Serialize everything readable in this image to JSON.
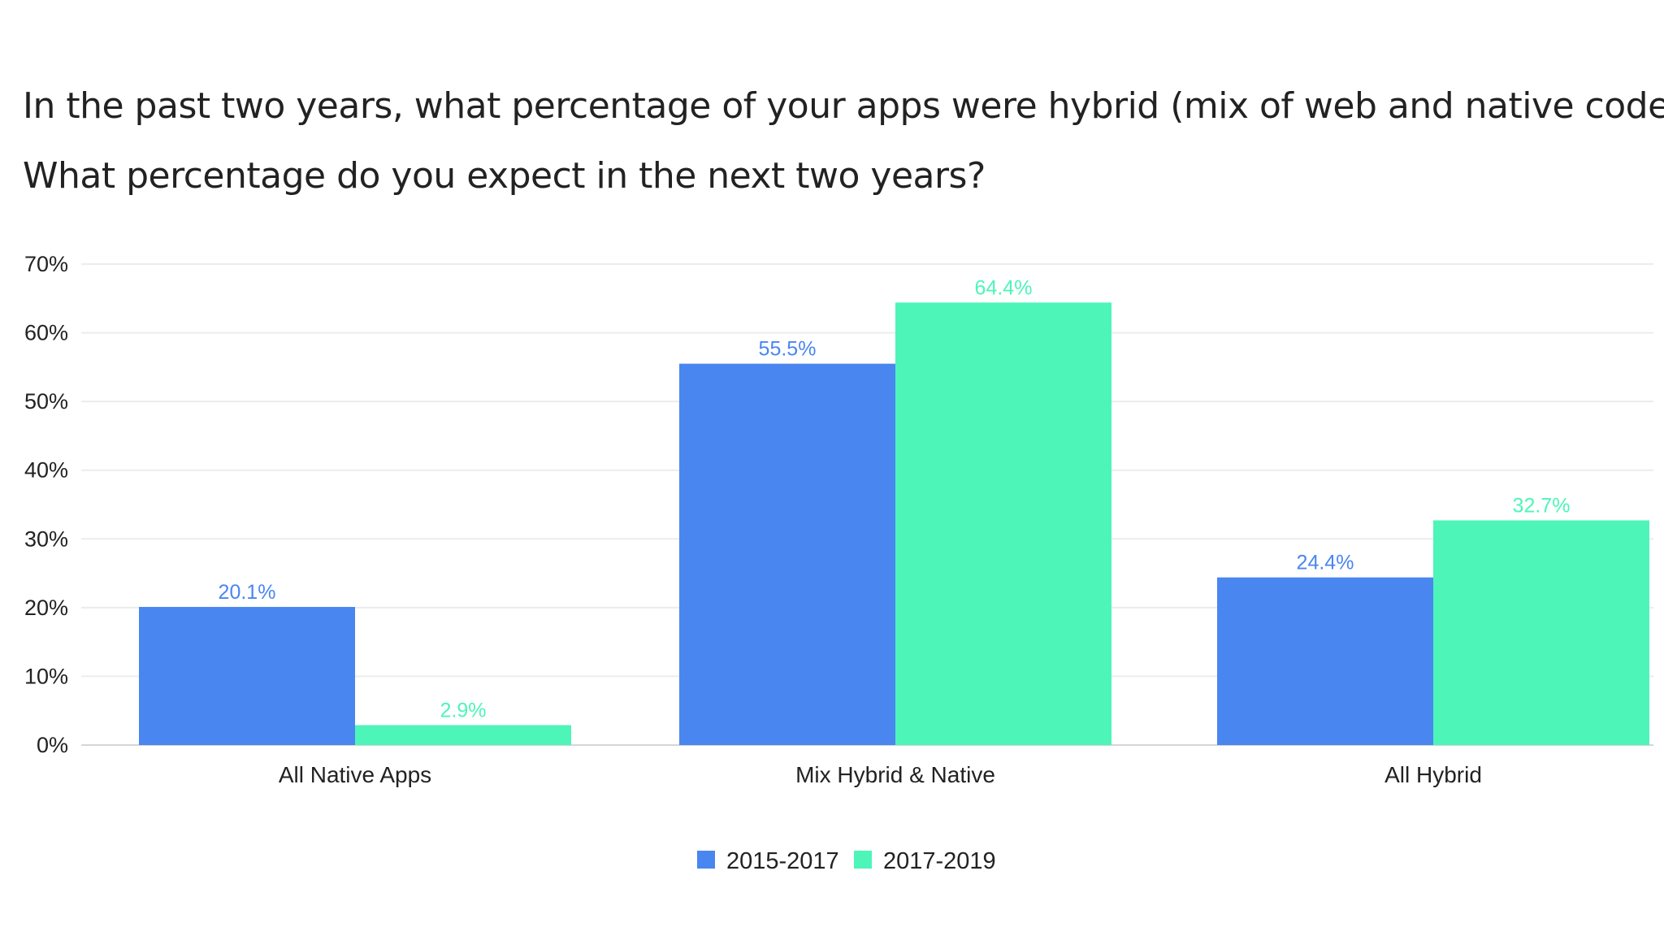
{
  "chart_data": {
    "type": "bar",
    "title": [
      "In the past two years, what percentage of your apps were hybrid (mix of web and native code)?",
      "What percentage do you expect in the next two years?"
    ],
    "categories": [
      "All Native Apps",
      "Mix Hybrid & Native",
      "All Hybrid"
    ],
    "series": [
      {
        "name": "2015-2017",
        "color": "#4a86f0",
        "values": [
          20.1,
          55.5,
          24.4
        ],
        "labels": [
          "20.1%",
          "55.5%",
          "24.4%"
        ]
      },
      {
        "name": "2017-2019",
        "color": "#4df5b9",
        "values": [
          2.9,
          64.4,
          32.7
        ],
        "labels": [
          "2.9%",
          "64.4%",
          "32.7%"
        ]
      }
    ],
    "ylim": [
      0,
      70
    ],
    "yticks": [
      0,
      10,
      20,
      30,
      40,
      50,
      60,
      70
    ],
    "ytick_labels": [
      "0%",
      "10%",
      "20%",
      "30%",
      "40%",
      "50%",
      "60%",
      "70%"
    ],
    "xlabel": "",
    "ylabel": "",
    "grid": true,
    "legend_position": "bottom-center"
  }
}
